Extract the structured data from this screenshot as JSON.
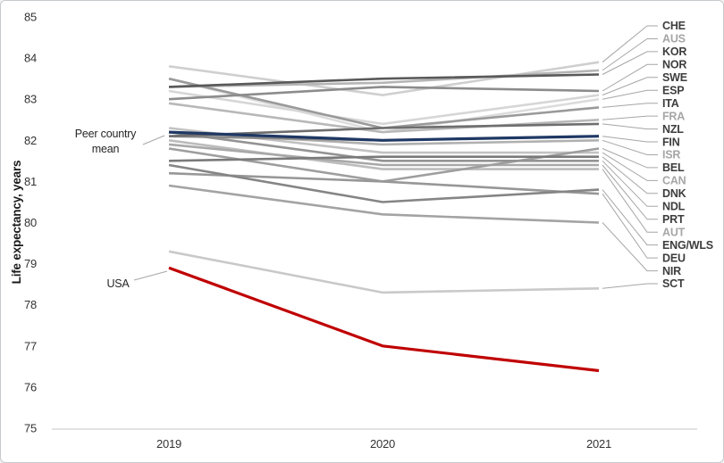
{
  "window": {
    "background": "#ffffff",
    "border_color": "#c6cacd"
  },
  "chart_data": {
    "type": "line",
    "title": "",
    "ylabel": "Life expectancy, years",
    "xlabel": "",
    "x": [
      2019,
      2020,
      2021
    ],
    "x_labels": [
      "2019",
      "2020",
      "2021"
    ],
    "ylim": [
      75,
      85
    ],
    "yticks": [
      75,
      76,
      77,
      78,
      79,
      80,
      81,
      82,
      83,
      84,
      85
    ],
    "grid": false,
    "legend_position": "right-edge-country-labels",
    "axis_text_color": "#333333",
    "baseline_color": "#d9d9d9",
    "connector_color": "#a6a6a6",
    "label_dark_color": "#3d3d3d",
    "label_light_color": "#a6a6a6",
    "annotation_text_color": "#262626",
    "accent_navy": "#1f3864",
    "accent_red": "#c00000",
    "series": [
      {
        "name": "ESP",
        "values": [
          83.5,
          82.2,
          83.0
        ],
        "color": "#dcdcdc",
        "width": 2.6,
        "label_tone": "dark"
      },
      {
        "name": "SWE",
        "values": [
          83.2,
          82.4,
          83.1
        ],
        "color": "#d6d6d6",
        "width": 2.6,
        "label_tone": "dark"
      },
      {
        "name": "CHE",
        "values": [
          83.8,
          83.1,
          83.9
        ],
        "color": "#cfcfcf",
        "width": 2.6,
        "label_tone": "dark"
      },
      {
        "name": "SCT",
        "values": [
          79.3,
          78.3,
          78.4
        ],
        "color": "#c9c9c9",
        "width": 2.6,
        "label_tone": "dark"
      },
      {
        "name": "CAN",
        "values": [
          82.3,
          81.7,
          81.7
        ],
        "color": "#c2c2c2",
        "width": 2.6,
        "label_tone": "light"
      },
      {
        "name": "AUT",
        "values": [
          82.0,
          81.3,
          81.3
        ],
        "color": "#bcbcbc",
        "width": 2.6,
        "label_tone": "light"
      },
      {
        "name": "FRA",
        "values": [
          82.9,
          82.2,
          82.5
        ],
        "color": "#b8b8b8",
        "width": 2.6,
        "label_tone": "light"
      },
      {
        "name": "AUS",
        "values": [
          83.3,
          83.4,
          83.7
        ],
        "color": "#b5b5b5",
        "width": 2.6,
        "label_tone": "light"
      },
      {
        "name": "ISR",
        "values": [
          82.2,
          81.9,
          82.0
        ],
        "color": "#b0b0b0",
        "width": 2.6,
        "label_tone": "light"
      },
      {
        "name": "PRT",
        "values": [
          81.9,
          81.4,
          81.4
        ],
        "color": "#a8a8a8",
        "width": 2.6,
        "label_tone": "dark"
      },
      {
        "name": "NIR",
        "values": [
          80.9,
          80.2,
          80.0
        ],
        "color": "#a3a3a3",
        "width": 2.6,
        "label_tone": "dark"
      },
      {
        "name": "BEL",
        "values": [
          81.8,
          81.0,
          81.8
        ],
        "color": "#9e9e9e",
        "width": 2.6,
        "label_tone": "dark"
      },
      {
        "name": "ITA",
        "values": [
          83.5,
          82.3,
          82.8
        ],
        "color": "#9a9a9a",
        "width": 2.6,
        "label_tone": "dark"
      },
      {
        "name": "DEU",
        "values": [
          81.2,
          81.0,
          80.7
        ],
        "color": "#979797",
        "width": 2.6,
        "label_tone": "dark"
      },
      {
        "name": "NDL",
        "values": [
          82.2,
          81.5,
          81.5
        ],
        "color": "#939393",
        "width": 2.6,
        "label_tone": "dark"
      },
      {
        "name": "NOR",
        "values": [
          83.0,
          83.3,
          83.2
        ],
        "color": "#8c8c8c",
        "width": 2.6,
        "label_tone": "dark"
      },
      {
        "name": "FIN",
        "values": [
          82.1,
          82.0,
          82.1
        ],
        "color": "#8a8a8a",
        "width": 2.6,
        "label_tone": "dark"
      },
      {
        "name": "ENG/WLS",
        "values": [
          81.4,
          80.5,
          80.8
        ],
        "color": "#858585",
        "width": 2.6,
        "label_tone": "dark"
      },
      {
        "name": "DNK",
        "values": [
          81.5,
          81.6,
          81.6
        ],
        "color": "#7a7a7a",
        "width": 2.6,
        "label_tone": "dark"
      },
      {
        "name": "NZL",
        "values": [
          82.1,
          82.3,
          82.4
        ],
        "color": "#6e6e6e",
        "width": 2.6,
        "label_tone": "dark"
      },
      {
        "name": "KOR",
        "values": [
          83.3,
          83.5,
          83.6
        ],
        "color": "#595959",
        "width": 2.6,
        "label_tone": "dark"
      },
      {
        "name": "Peer country mean",
        "values": [
          82.2,
          82.0,
          82.1
        ],
        "color": "#1f3864",
        "width": 3.2,
        "label_tone": "none"
      },
      {
        "name": "USA",
        "values": [
          78.9,
          77.0,
          76.4
        ],
        "color": "#c00000",
        "width": 3.2,
        "label_tone": "none"
      }
    ],
    "annotations": [
      {
        "text_lines": [
          "Peer country",
          "mean"
        ],
        "series": "Peer country mean"
      },
      {
        "text_lines": [
          "USA"
        ],
        "series": "USA"
      }
    ]
  }
}
